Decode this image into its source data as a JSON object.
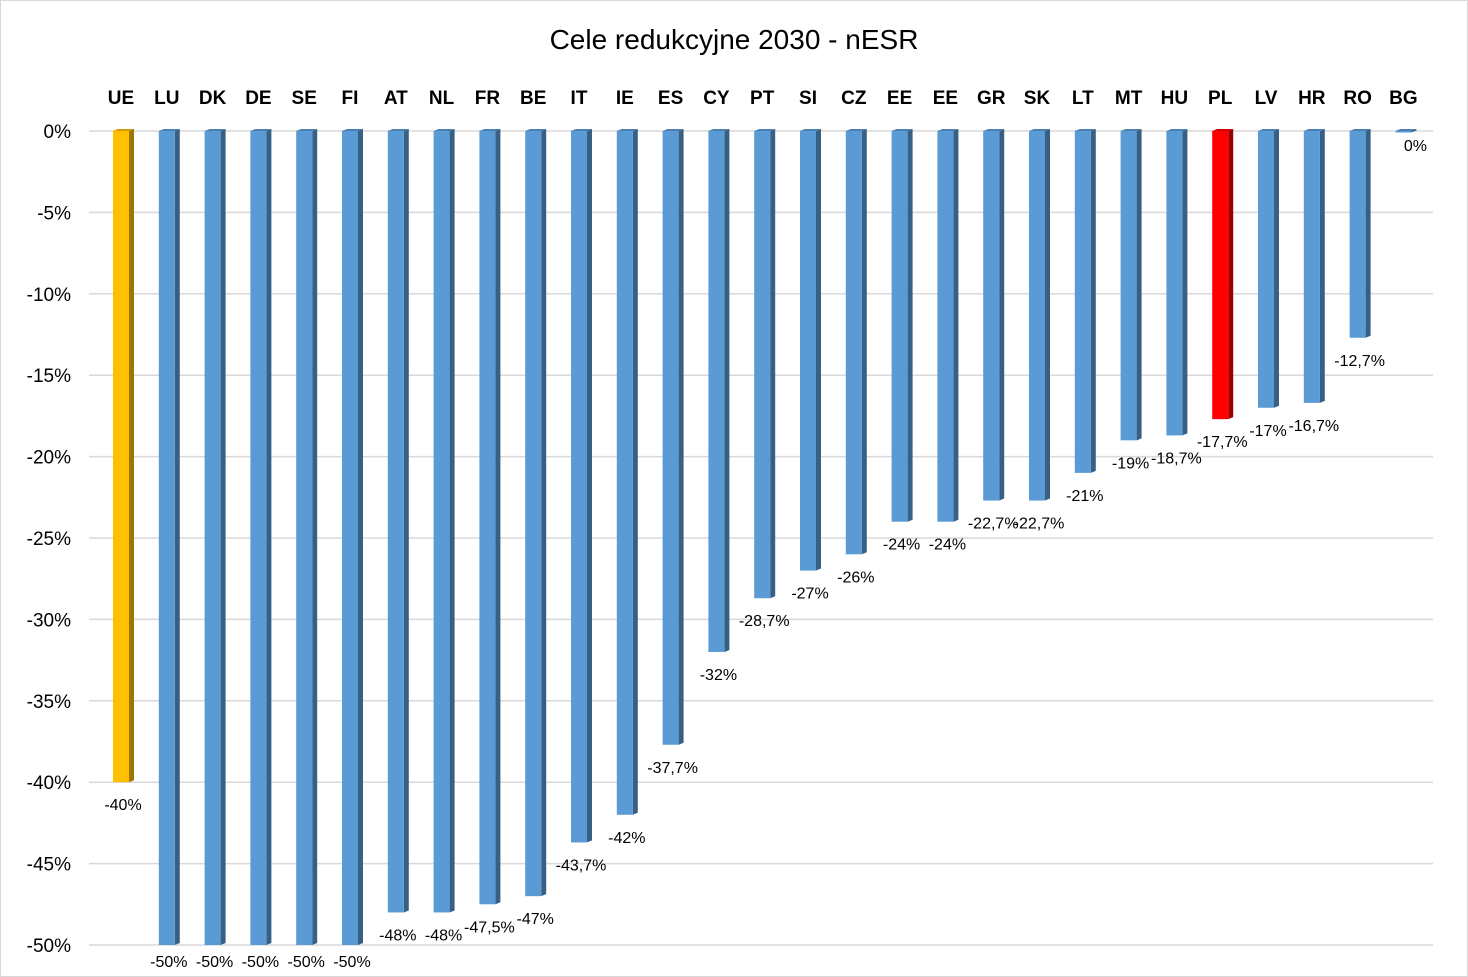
{
  "chart_data": {
    "type": "bar",
    "title": "Cele redukcyjne 2030 - nESR",
    "xlabel": "",
    "ylabel": "",
    "ylim": [
      -50,
      0
    ],
    "yticks": [
      0,
      -5,
      -10,
      -15,
      -20,
      -25,
      -30,
      -35,
      -40,
      -45,
      -50
    ],
    "ytick_labels": [
      "0%",
      "-5%",
      "-10%",
      "-15%",
      "-20%",
      "-25%",
      "-30%",
      "-35%",
      "-40%",
      "-45%",
      "-50%"
    ],
    "grid": true,
    "legend": "none",
    "categories": [
      "UE",
      "LU",
      "DK",
      "DE",
      "SE",
      "FI",
      "AT",
      "NL",
      "FR",
      "BE",
      "IT",
      "IE",
      "ES",
      "CY",
      "PT",
      "SI",
      "CZ",
      "EE",
      "EE",
      "GR",
      "SK",
      "LT",
      "MT",
      "HU",
      "PL",
      "LV",
      "HR",
      "RO",
      "BG"
    ],
    "values": [
      -40,
      -50,
      -50,
      -50,
      -50,
      -50,
      -48,
      -48,
      -47.5,
      -47,
      -43.7,
      -42,
      -37.7,
      -32,
      -28.7,
      -27,
      -26,
      -24,
      -24,
      -22.7,
      -22.7,
      -21,
      -19,
      -18.7,
      -17.7,
      -17,
      -16.7,
      -12.7,
      0
    ],
    "data_labels": [
      "-40%",
      "-50%",
      "-50%",
      "-50%",
      "-50%",
      "-50%",
      "-48%",
      "-48%",
      "-47,5%",
      "-47%",
      "-43,7%",
      "-42%",
      "-37,7%",
      "-32%",
      "-28,7%",
      "-27%",
      "-26%",
      "-24%",
      "-24%",
      "-22,7%",
      "-22,7%",
      "-21%",
      "-19%",
      "-18,7%",
      "-17,7%",
      "-17%",
      "-16,7%",
      "-12,7%",
      "0%"
    ],
    "colors": {
      "default": "#5b9bd5",
      "UE": "#ffc000",
      "PL": "#ff0000"
    }
  }
}
